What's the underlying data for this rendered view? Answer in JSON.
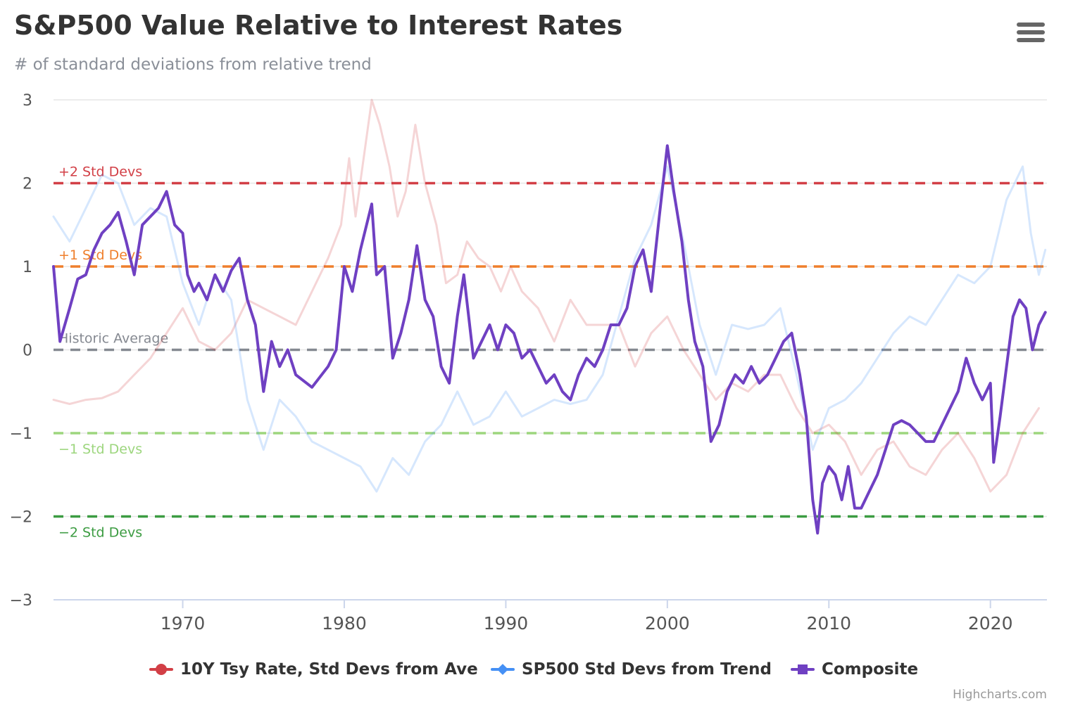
{
  "header": {
    "title": "S&P500 Value Relative to Interest Rates",
    "subtitle": "# of standard deviations from relative trend",
    "menu_icon": "hamburger-menu-icon"
  },
  "credits": "Highcharts.com",
  "chart_data": {
    "type": "line",
    "title": "S&P500 Value Relative to Interest Rates",
    "subtitle": "# of standard deviations from relative trend",
    "xlabel": "",
    "ylabel": "",
    "xlim": [
      1962,
      2023.5
    ],
    "ylim": [
      -3,
      3
    ],
    "x_ticks": [
      1970,
      1980,
      1990,
      2000,
      2010,
      2020
    ],
    "y_ticks": [
      -3,
      -2,
      -1,
      0,
      1,
      2,
      3
    ],
    "x_tick_labels": [
      "1970",
      "1980",
      "1990",
      "2000",
      "2010",
      "2020"
    ],
    "y_tick_labels": [
      "−3",
      "−2",
      "−1",
      "0",
      "1",
      "2",
      "3"
    ],
    "grid": true,
    "legend_position": "bottom-center",
    "plot_lines": [
      {
        "value": 2,
        "label": "+2 Std Devs",
        "color": "#d23f46"
      },
      {
        "value": 1,
        "label": "+1 Std Devs",
        "color": "#ef7f2c"
      },
      {
        "value": 0,
        "label": "Historic Average",
        "color": "#858991"
      },
      {
        "value": -1,
        "label": "−1 Std Devs",
        "color": "#9dd67e"
      },
      {
        "value": -2,
        "label": "−2 Std Devs",
        "color": "#3c9c42"
      }
    ],
    "series": [
      {
        "name": "10Y Tsy Rate, Std Devs from Ave",
        "color": "#d23f46",
        "faded": true,
        "marker": "circle",
        "points": [
          [
            1962,
            -0.6
          ],
          [
            1963,
            -0.65
          ],
          [
            1964,
            -0.6
          ],
          [
            1965,
            -0.58
          ],
          [
            1966,
            -0.5
          ],
          [
            1967,
            -0.3
          ],
          [
            1968,
            -0.1
          ],
          [
            1969,
            0.2
          ],
          [
            1970,
            0.5
          ],
          [
            1971,
            0.1
          ],
          [
            1972,
            0.0
          ],
          [
            1973,
            0.2
          ],
          [
            1974,
            0.6
          ],
          [
            1975,
            0.5
          ],
          [
            1976,
            0.4
          ],
          [
            1977,
            0.3
          ],
          [
            1978,
            0.7
          ],
          [
            1979,
            1.1
          ],
          [
            1979.8,
            1.5
          ],
          [
            1980.3,
            2.3
          ],
          [
            1980.7,
            1.6
          ],
          [
            1981.2,
            2.3
          ],
          [
            1981.7,
            3.0
          ],
          [
            1982.2,
            2.7
          ],
          [
            1982.8,
            2.2
          ],
          [
            1983.3,
            1.6
          ],
          [
            1983.8,
            1.9
          ],
          [
            1984.4,
            2.7
          ],
          [
            1985,
            2.0
          ],
          [
            1985.7,
            1.5
          ],
          [
            1986.3,
            0.8
          ],
          [
            1987,
            0.9
          ],
          [
            1987.6,
            1.3
          ],
          [
            1988.3,
            1.1
          ],
          [
            1989,
            1.0
          ],
          [
            1989.7,
            0.7
          ],
          [
            1990.3,
            1.0
          ],
          [
            1991,
            0.7
          ],
          [
            1992,
            0.5
          ],
          [
            1993,
            0.1
          ],
          [
            1994,
            0.6
          ],
          [
            1995,
            0.3
          ],
          [
            1996,
            0.3
          ],
          [
            1997,
            0.3
          ],
          [
            1998,
            -0.2
          ],
          [
            1999,
            0.2
          ],
          [
            2000,
            0.4
          ],
          [
            2001,
            0.0
          ],
          [
            2002,
            -0.3
          ],
          [
            2003,
            -0.6
          ],
          [
            2004,
            -0.4
          ],
          [
            2005,
            -0.5
          ],
          [
            2006,
            -0.3
          ],
          [
            2007,
            -0.3
          ],
          [
            2008,
            -0.7
          ],
          [
            2009,
            -1.0
          ],
          [
            2010,
            -0.9
          ],
          [
            2011,
            -1.1
          ],
          [
            2012,
            -1.5
          ],
          [
            2013,
            -1.2
          ],
          [
            2014,
            -1.1
          ],
          [
            2015,
            -1.4
          ],
          [
            2016,
            -1.5
          ],
          [
            2017,
            -1.2
          ],
          [
            2018,
            -1.0
          ],
          [
            2019,
            -1.3
          ],
          [
            2020,
            -1.7
          ],
          [
            2021,
            -1.5
          ],
          [
            2022,
            -1.0
          ],
          [
            2023,
            -0.7
          ]
        ]
      },
      {
        "name": "SP500 Std Devs from Trend",
        "color": "#4590f5",
        "faded": true,
        "marker": "diamond",
        "points": [
          [
            1962,
            1.6
          ],
          [
            1963,
            1.3
          ],
          [
            1964,
            1.7
          ],
          [
            1965,
            2.1
          ],
          [
            1966,
            2.0
          ],
          [
            1967,
            1.5
          ],
          [
            1968,
            1.7
          ],
          [
            1969,
            1.6
          ],
          [
            1970,
            0.8
          ],
          [
            1971,
            0.3
          ],
          [
            1972,
            0.9
          ],
          [
            1973,
            0.6
          ],
          [
            1974,
            -0.6
          ],
          [
            1975,
            -1.2
          ],
          [
            1976,
            -0.6
          ],
          [
            1977,
            -0.8
          ],
          [
            1978,
            -1.1
          ],
          [
            1979,
            -1.2
          ],
          [
            1980,
            -1.3
          ],
          [
            1981,
            -1.4
          ],
          [
            1982,
            -1.7
          ],
          [
            1983,
            -1.3
          ],
          [
            1984,
            -1.5
          ],
          [
            1985,
            -1.1
          ],
          [
            1986,
            -0.9
          ],
          [
            1987,
            -0.5
          ],
          [
            1988,
            -0.9
          ],
          [
            1989,
            -0.8
          ],
          [
            1990,
            -0.5
          ],
          [
            1991,
            -0.8
          ],
          [
            1992,
            -0.7
          ],
          [
            1993,
            -0.6
          ],
          [
            1994,
            -0.65
          ],
          [
            1995,
            -0.6
          ],
          [
            1996,
            -0.3
          ],
          [
            1997,
            0.4
          ],
          [
            1998,
            1.1
          ],
          [
            1999,
            1.5
          ],
          [
            2000,
            2.2
          ],
          [
            2001,
            1.3
          ],
          [
            2002,
            0.3
          ],
          [
            2003,
            -0.3
          ],
          [
            2004,
            0.3
          ],
          [
            2005,
            0.25
          ],
          [
            2006,
            0.3
          ],
          [
            2007,
            0.5
          ],
          [
            2008,
            -0.3
          ],
          [
            2009,
            -1.2
          ],
          [
            2010,
            -0.7
          ],
          [
            2011,
            -0.6
          ],
          [
            2012,
            -0.4
          ],
          [
            2013,
            -0.1
          ],
          [
            2014,
            0.2
          ],
          [
            2015,
            0.4
          ],
          [
            2016,
            0.3
          ],
          [
            2017,
            0.6
          ],
          [
            2018,
            0.9
          ],
          [
            2019,
            0.8
          ],
          [
            2020,
            1.0
          ],
          [
            2021,
            1.8
          ],
          [
            2022,
            2.2
          ],
          [
            2022.5,
            1.4
          ],
          [
            2023,
            0.9
          ],
          [
            2023.4,
            1.2
          ]
        ]
      },
      {
        "name": "Composite",
        "color": "#6f40c2",
        "faded": false,
        "marker": "square",
        "points": [
          [
            1962,
            1.0
          ],
          [
            1962.4,
            0.1
          ],
          [
            1963,
            0.5
          ],
          [
            1963.5,
            0.85
          ],
          [
            1964,
            0.9
          ],
          [
            1964.5,
            1.2
          ],
          [
            1965,
            1.4
          ],
          [
            1965.5,
            1.5
          ],
          [
            1966,
            1.65
          ],
          [
            1966.5,
            1.3
          ],
          [
            1967,
            0.9
          ],
          [
            1967.5,
            1.5
          ],
          [
            1968,
            1.6
          ],
          [
            1968.5,
            1.7
          ],
          [
            1969,
            1.9
          ],
          [
            1969.5,
            1.5
          ],
          [
            1970,
            1.4
          ],
          [
            1970.3,
            0.9
          ],
          [
            1970.7,
            0.7
          ],
          [
            1971,
            0.8
          ],
          [
            1971.5,
            0.6
          ],
          [
            1972,
            0.9
          ],
          [
            1972.5,
            0.7
          ],
          [
            1973,
            0.95
          ],
          [
            1973.5,
            1.1
          ],
          [
            1974,
            0.6
          ],
          [
            1974.5,
            0.3
          ],
          [
            1975,
            -0.5
          ],
          [
            1975.5,
            0.1
          ],
          [
            1976,
            -0.2
          ],
          [
            1976.5,
            0.0
          ],
          [
            1977,
            -0.3
          ],
          [
            1978,
            -0.45
          ],
          [
            1979,
            -0.2
          ],
          [
            1979.5,
            0.0
          ],
          [
            1980,
            1.0
          ],
          [
            1980.5,
            0.7
          ],
          [
            1981,
            1.2
          ],
          [
            1981.7,
            1.75
          ],
          [
            1982,
            0.9
          ],
          [
            1982.5,
            1.0
          ],
          [
            1983,
            -0.1
          ],
          [
            1983.5,
            0.2
          ],
          [
            1984,
            0.6
          ],
          [
            1984.5,
            1.25
          ],
          [
            1985,
            0.6
          ],
          [
            1985.5,
            0.4
          ],
          [
            1986,
            -0.2
          ],
          [
            1986.5,
            -0.4
          ],
          [
            1987,
            0.4
          ],
          [
            1987.4,
            0.9
          ],
          [
            1988,
            -0.1
          ],
          [
            1988.5,
            0.1
          ],
          [
            1989,
            0.3
          ],
          [
            1989.5,
            0.0
          ],
          [
            1990,
            0.3
          ],
          [
            1990.5,
            0.2
          ],
          [
            1991,
            -0.1
          ],
          [
            1991.5,
            0.0
          ],
          [
            1992,
            -0.2
          ],
          [
            1992.5,
            -0.4
          ],
          [
            1993,
            -0.3
          ],
          [
            1993.5,
            -0.5
          ],
          [
            1994,
            -0.6
          ],
          [
            1994.5,
            -0.3
          ],
          [
            1995,
            -0.1
          ],
          [
            1995.5,
            -0.2
          ],
          [
            1996,
            0.0
          ],
          [
            1996.5,
            0.3
          ],
          [
            1997,
            0.3
          ],
          [
            1997.5,
            0.5
          ],
          [
            1998,
            1.0
          ],
          [
            1998.5,
            1.2
          ],
          [
            1999,
            0.7
          ],
          [
            1999.5,
            1.6
          ],
          [
            2000,
            2.45
          ],
          [
            2000.4,
            1.9
          ],
          [
            2000.9,
            1.3
          ],
          [
            2001.3,
            0.6
          ],
          [
            2001.7,
            0.1
          ],
          [
            2002.2,
            -0.2
          ],
          [
            2002.7,
            -1.1
          ],
          [
            2003.2,
            -0.9
          ],
          [
            2003.7,
            -0.5
          ],
          [
            2004.2,
            -0.3
          ],
          [
            2004.7,
            -0.4
          ],
          [
            2005.2,
            -0.2
          ],
          [
            2005.7,
            -0.4
          ],
          [
            2006.2,
            -0.3
          ],
          [
            2006.7,
            -0.1
          ],
          [
            2007.2,
            0.1
          ],
          [
            2007.7,
            0.2
          ],
          [
            2008.2,
            -0.3
          ],
          [
            2008.6,
            -0.8
          ],
          [
            2009.0,
            -1.8
          ],
          [
            2009.3,
            -2.2
          ],
          [
            2009.6,
            -1.6
          ],
          [
            2010.0,
            -1.4
          ],
          [
            2010.4,
            -1.5
          ],
          [
            2010.8,
            -1.8
          ],
          [
            2011.2,
            -1.4
          ],
          [
            2011.6,
            -1.9
          ],
          [
            2012.0,
            -1.9
          ],
          [
            2012.5,
            -1.7
          ],
          [
            2013.0,
            -1.5
          ],
          [
            2013.5,
            -1.2
          ],
          [
            2014.0,
            -0.9
          ],
          [
            2014.5,
            -0.85
          ],
          [
            2015.0,
            -0.9
          ],
          [
            2015.5,
            -1.0
          ],
          [
            2016.0,
            -1.1
          ],
          [
            2016.5,
            -1.1
          ],
          [
            2017.0,
            -0.9
          ],
          [
            2017.5,
            -0.7
          ],
          [
            2018.0,
            -0.5
          ],
          [
            2018.5,
            -0.1
          ],
          [
            2019.0,
            -0.4
          ],
          [
            2019.5,
            -0.6
          ],
          [
            2020.0,
            -0.4
          ],
          [
            2020.2,
            -1.35
          ],
          [
            2020.6,
            -0.8
          ],
          [
            2021.0,
            -0.2
          ],
          [
            2021.4,
            0.4
          ],
          [
            2021.8,
            0.6
          ],
          [
            2022.2,
            0.5
          ],
          [
            2022.6,
            0.0
          ],
          [
            2023.0,
            0.3
          ],
          [
            2023.4,
            0.45
          ]
        ]
      }
    ]
  }
}
